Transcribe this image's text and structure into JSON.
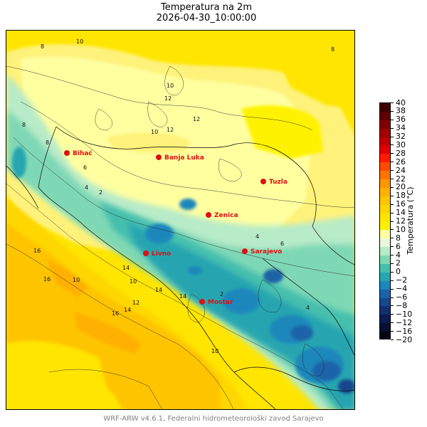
{
  "title": {
    "line1": "Temperatura na 2m",
    "line2": "2026-04-30_10:00:00"
  },
  "colorbar": {
    "label": "Temperatura (°C)",
    "ticks": [
      40,
      38,
      36,
      34,
      32,
      30,
      28,
      26,
      24,
      22,
      20,
      18,
      16,
      14,
      12,
      10,
      8,
      6,
      4,
      2,
      0,
      -2,
      -4,
      -6,
      -8,
      -10,
      -12,
      -16,
      -20
    ],
    "tick_labels": [
      "40",
      "38",
      "36",
      "34",
      "32",
      "30",
      "28",
      "26",
      "24",
      "22",
      "20",
      "18",
      "16",
      "14",
      "12",
      "10",
      "8",
      "6",
      "4",
      "2",
      "0",
      "−2",
      "−4",
      "−6",
      "−8",
      "−10",
      "−12",
      "−16",
      "−20"
    ],
    "colors": [
      "#3d0000",
      "#5e0000",
      "#800000",
      "#a00000",
      "#c00000",
      "#e00000",
      "#ff1a00",
      "#ff4a00",
      "#ff7400",
      "#ff9600",
      "#ffb000",
      "#ffc400",
      "#ffd700",
      "#ffe500",
      "#fff200",
      "#ffffa0",
      "#e8f8d8",
      "#b8ebc8",
      "#7fd8b5",
      "#45bfae",
      "#27a5b0",
      "#1a87bb",
      "#1a63a8",
      "#18468c",
      "#123070",
      "#0c1c50",
      "#081032",
      "#020614"
    ]
  },
  "cities": [
    {
      "name": "Bihać"
    },
    {
      "name": "Banja Luka"
    },
    {
      "name": "Tuzla"
    },
    {
      "name": "Zenica"
    },
    {
      "name": "Sarajevo"
    },
    {
      "name": "Livno"
    },
    {
      "name": "Mostar"
    }
  ],
  "contour_labels": [
    "8",
    "10",
    "10",
    "12",
    "12",
    "10",
    "12",
    "8",
    "8",
    "6",
    "4",
    "2",
    "16",
    "16",
    "14",
    "10",
    "10",
    "14",
    "16",
    "14",
    "14",
    "12",
    "10",
    "4",
    "6",
    "2",
    "4",
    "8"
  ],
  "footer": "WRF-ARW v4.6.1, Federalni hidrometeorološki zavod Sarajevo"
}
